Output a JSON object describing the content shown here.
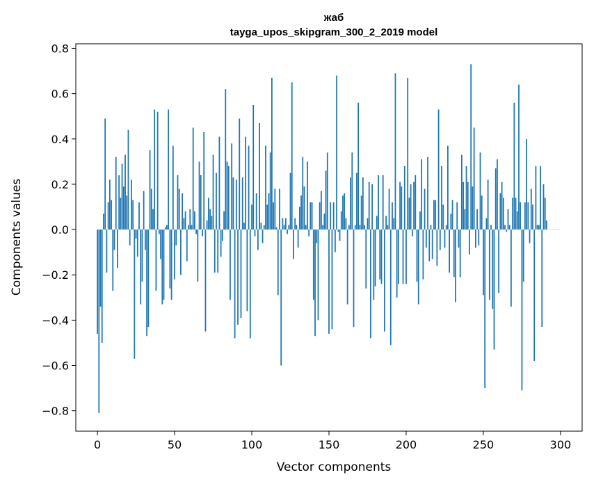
{
  "chart_data": {
    "type": "bar",
    "title": "жаб",
    "subtitle": "tayga_upos_skipgram_300_2_2019 model",
    "xlabel": "Vector components",
    "ylabel": "Components values",
    "xlim": [
      -14,
      314
    ],
    "ylim": [
      -0.89,
      0.82
    ],
    "xticks": [
      0,
      50,
      100,
      150,
      200,
      250,
      300
    ],
    "yticks": [
      -0.8,
      -0.6,
      -0.4,
      -0.2,
      0.0,
      0.2,
      0.4,
      0.6,
      0.8
    ],
    "xtick_labels": [
      "0",
      "50",
      "100",
      "150",
      "200",
      "250",
      "300"
    ],
    "ytick_labels": [
      "−0.8",
      "−0.6",
      "−0.4",
      "−0.2",
      "0.0",
      "0.2",
      "0.4",
      "0.6",
      "0.8"
    ],
    "bar_color": "#1f77b4",
    "grid": false,
    "legend": "none",
    "x": "0..299 (component index)",
    "values": [
      -0.46,
      -0.81,
      -0.34,
      -0.5,
      0.07,
      0.49,
      -0.19,
      0.12,
      0.22,
      0.13,
      -0.27,
      -0.09,
      0.32,
      -0.17,
      0.24,
      0.14,
      0.29,
      0.19,
      0.33,
      0.15,
      0.44,
      -0.07,
      0.22,
      0.13,
      -0.57,
      -0.04,
      -0.12,
      0.12,
      -0.33,
      -0.23,
      0.17,
      -0.09,
      -0.47,
      -0.43,
      0.35,
      0.18,
      0.09,
      0.53,
      -0.27,
      0.52,
      -0.02,
      -0.13,
      -0.33,
      -0.31,
      0.01,
      0.02,
      0.53,
      -0.26,
      -0.31,
      0.37,
      -0.22,
      -0.07,
      0.24,
      0.18,
      -0.2,
      0.16,
      0.05,
      0.08,
      -0.14,
      0.02,
      0.09,
      0.02,
      0.45,
      0.08,
      -0.02,
      -0.23,
      0.3,
      0.24,
      -0.03,
      0.43,
      -0.45,
      0.04,
      0.14,
      0.09,
      0.06,
      0.33,
      -0.19,
      0.25,
      -0.19,
      0.41,
      -0.12,
      -0.05,
      0.08,
      0.62,
      0.3,
      0.28,
      -0.31,
      0.38,
      0.23,
      -0.48,
      0.22,
      -0.42,
      0.49,
      -0.39,
      0.23,
      0.03,
      0.41,
      -0.36,
      0.37,
      -0.48,
      0.11,
      0.55,
      -0.03,
      0.16,
      -0.09,
      0.47,
      0.03,
      -0.06,
      0.02,
      0.37,
      0.11,
      0.16,
      0.34,
      0.67,
      0.12,
      0.18,
      0.01,
      -0.29,
      0.18,
      -0.6,
      0.05,
      0.02,
      0.05,
      -0.02,
      0.02,
      0.25,
      0.65,
      -0.13,
      0.05,
      0.02,
      -0.08,
      0.1,
      0.15,
      0.32,
      0.19,
      0.02,
      0.3,
      -0.03,
      0.12,
      0.12,
      -0.31,
      -0.47,
      -0.06,
      -0.4,
      0.12,
      0.17,
      0.02,
      0.07,
      0.26,
      0.34,
      -0.46,
      0.12,
      -0.44,
      0.12,
      -0.1,
      0.68,
      -0.01,
      -0.05,
      0.08,
      0.15,
      0.16,
      0.05,
      -0.33,
      0.02,
      0.23,
      0.34,
      -0.43,
      0.02,
      0.25,
      0.56,
      0.02,
      0.15,
      0.23,
      0.02,
      -0.26,
      0.05,
      0.21,
      -0.48,
      0.2,
      -0.31,
      -0.25,
      0.06,
      0.24,
      -0.22,
      -0.24,
      0.24,
      -0.45,
      0.06,
      0.02,
      0.18,
      -0.51,
      0.12,
      0.05,
      0.69,
      -0.3,
      -0.24,
      0.21,
      0.19,
      -0.24,
      0.28,
      -0.24,
      0.67,
      0.14,
      0.2,
      -0.03,
      0.21,
      0.24,
      -0.23,
      -0.33,
      0.08,
      0.31,
      -0.22,
      0.18,
      -0.08,
      0.32,
      -0.14,
      0.02,
      -0.13,
      0.13,
      0.13,
      -0.16,
      0.53,
      -0.09,
      0.28,
      0.11,
      -0.08,
      0.02,
      0.37,
      -0.19,
      0.07,
      0.13,
      -0.21,
      -0.32,
      0.12,
      -0.08,
      -0.21,
      0.33,
      0.21,
      0.09,
      0.28,
      0.21,
      -0.11,
      0.73,
      0.19,
      0.45,
      -0.08,
      0.09,
      -0.07,
      0.34,
      0.15,
      -0.29,
      -0.7,
      0.05,
      0.22,
      -0.31,
      0.02,
      -0.35,
      -0.53,
      0.27,
      0.31,
      -0.28,
      0.16,
      0.21,
      0.14,
      0.02,
      -0.01,
      0.09,
      0.02,
      -0.34,
      0.14,
      0.56,
      0.14,
      0.08,
      0.64,
      0.12,
      -0.71,
      -0.23,
      0.12,
      0.4,
      0.12,
      -0.06,
      0.18,
      0.11,
      -0.58,
      0.28,
      0.02,
      0.02,
      0.28,
      -0.43,
      0.2,
      0.14,
      0.04,
      0.0,
      0.0,
      0.0,
      0.0,
      0.0,
      0.0,
      0.0,
      0.0
    ]
  }
}
